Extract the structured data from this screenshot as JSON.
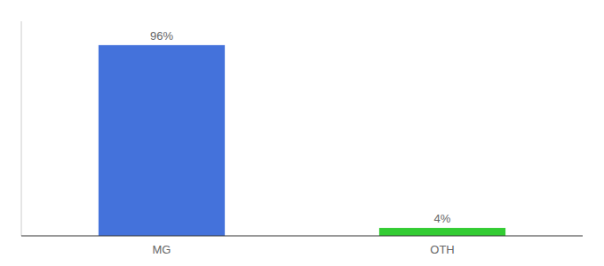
{
  "chart_data": {
    "type": "bar",
    "categories": [
      "MG",
      "OTH"
    ],
    "values": [
      96,
      4
    ],
    "value_labels": [
      "96%",
      "4%"
    ],
    "colors": [
      "#4472db",
      "#33cc33"
    ],
    "ylim": [
      0,
      108
    ],
    "data_labels": true,
    "tick_labels": "x",
    "grid": false
  }
}
